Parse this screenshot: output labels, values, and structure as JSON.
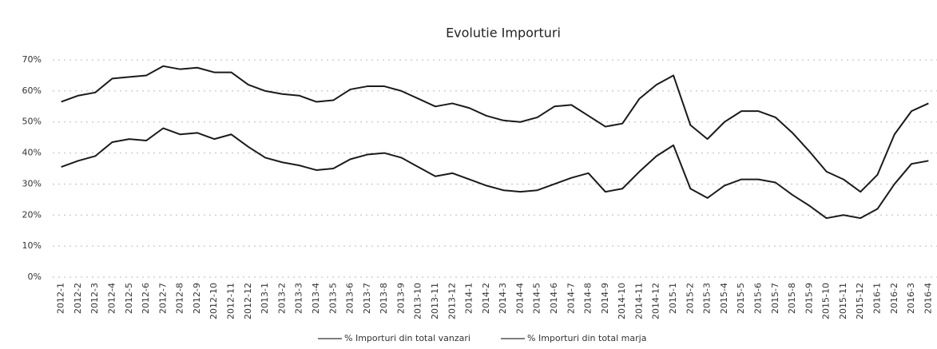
{
  "chart_data": {
    "type": "line",
    "title": "Evolutie Importuri",
    "categories": [
      "2012-1",
      "2012-2",
      "2012-3",
      "2012-4",
      "2012-5",
      "2012-6",
      "2012-7",
      "2012-8",
      "2012-9",
      "2012-10",
      "2012-11",
      "2012-12",
      "2013-1",
      "2013-2",
      "2013-3",
      "2013-4",
      "2013-5",
      "2013-6",
      "2013-7",
      "2013-8",
      "2013-9",
      "2013-10",
      "2013-11",
      "2013-12",
      "2014-1",
      "2014-2",
      "2014-3",
      "2014-4",
      "2014-5",
      "2014-6",
      "2014-7",
      "2014-8",
      "2014-9",
      "2014-10",
      "2014-11",
      "2014-12",
      "2015-1",
      "2015-2",
      "2015-3",
      "2015-4",
      "2015-5",
      "2015-6",
      "2015-7",
      "2015-8",
      "2015-9",
      "2015-10",
      "2015-11",
      "2015-12",
      "2016-1",
      "2016-2",
      "2016-3",
      "2016-4"
    ],
    "series": [
      {
        "name": "% Importuri din total vanzari",
        "color": "#1a1a1a",
        "values": [
          35.5,
          37.5,
          39,
          43.5,
          44.5,
          44,
          48,
          46,
          46.5,
          44.5,
          46,
          42,
          38.5,
          37,
          36,
          34.5,
          35,
          38,
          39.5,
          40,
          38.5,
          35.5,
          32.5,
          33.5,
          31.5,
          29.5,
          28,
          27.5,
          28,
          30,
          32,
          33.5,
          27.5,
          28.5,
          34,
          39,
          42.5,
          28.5,
          25.5,
          29.5,
          31.5,
          31.5,
          30.5,
          26.5,
          23,
          19,
          20,
          19,
          22,
          30,
          36.5,
          37.5
        ]
      },
      {
        "name": "% Importuri din total marja",
        "color": "#1a1a1a",
        "values": [
          56.5,
          58.5,
          59.5,
          64,
          64.5,
          65,
          68,
          67,
          67.5,
          66,
          66,
          62,
          60,
          59,
          58.5,
          56.5,
          57,
          60.5,
          61.5,
          61.5,
          60,
          57.5,
          55,
          56,
          54.5,
          52,
          50.5,
          50,
          51.5,
          55,
          55.5,
          52,
          48.5,
          49.5,
          57.5,
          62,
          65,
          49,
          44.5,
          50,
          53.5,
          53.5,
          51.5,
          46.5,
          40.5,
          34,
          31.5,
          27.5,
          33,
          46,
          53.5,
          56
        ]
      }
    ],
    "ylim": [
      0,
      75
    ],
    "yticks": [
      {
        "value": 0,
        "label": "0%"
      },
      {
        "value": 10,
        "label": "10%"
      },
      {
        "value": 20,
        "label": "20%"
      },
      {
        "value": 30,
        "label": "30%"
      },
      {
        "value": 40,
        "label": "40%"
      },
      {
        "value": 50,
        "label": "50%"
      },
      {
        "value": 60,
        "label": "60%"
      },
      {
        "value": 70,
        "label": "70%"
      }
    ],
    "grid": true,
    "legend": "bottom"
  }
}
